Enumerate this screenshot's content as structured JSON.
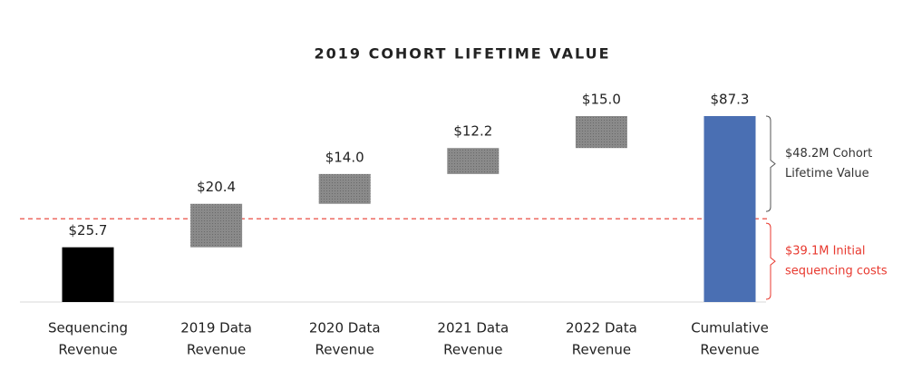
{
  "chart_data": {
    "type": "waterfall",
    "title": "2019 COHORT LIFETIME VALUE",
    "categories": [
      [
        "Sequencing",
        "Revenue"
      ],
      [
        "2019 Data",
        "Revenue"
      ],
      [
        "2020 Data",
        "Revenue"
      ],
      [
        "2021 Data",
        "Revenue"
      ],
      [
        "2022 Data",
        "Revenue"
      ],
      [
        "Cumulative",
        "Revenue"
      ]
    ],
    "values": [
      25.7,
      20.4,
      14.0,
      12.2,
      15.0,
      87.3
    ],
    "value_labels": [
      "$25.7",
      "$20.4",
      "$14.0",
      "$12.2",
      "$15.0",
      "$87.3"
    ],
    "colors": [
      "#000000",
      "#7f7f7f",
      "#7f7f7f",
      "#7f7f7f",
      "#7f7f7f",
      "#4a6fb3"
    ],
    "threshold": 39.1,
    "threshold_color": "#e8392f",
    "annotations": [
      {
        "lines": [
          "$48.2M Cohort",
          "Lifetime Value"
        ],
        "value": 48.2,
        "color": "#333333"
      },
      {
        "lines": [
          "$39.1M Initial",
          "sequencing costs"
        ],
        "value": 39.1,
        "color": "#e8392f"
      }
    ]
  }
}
